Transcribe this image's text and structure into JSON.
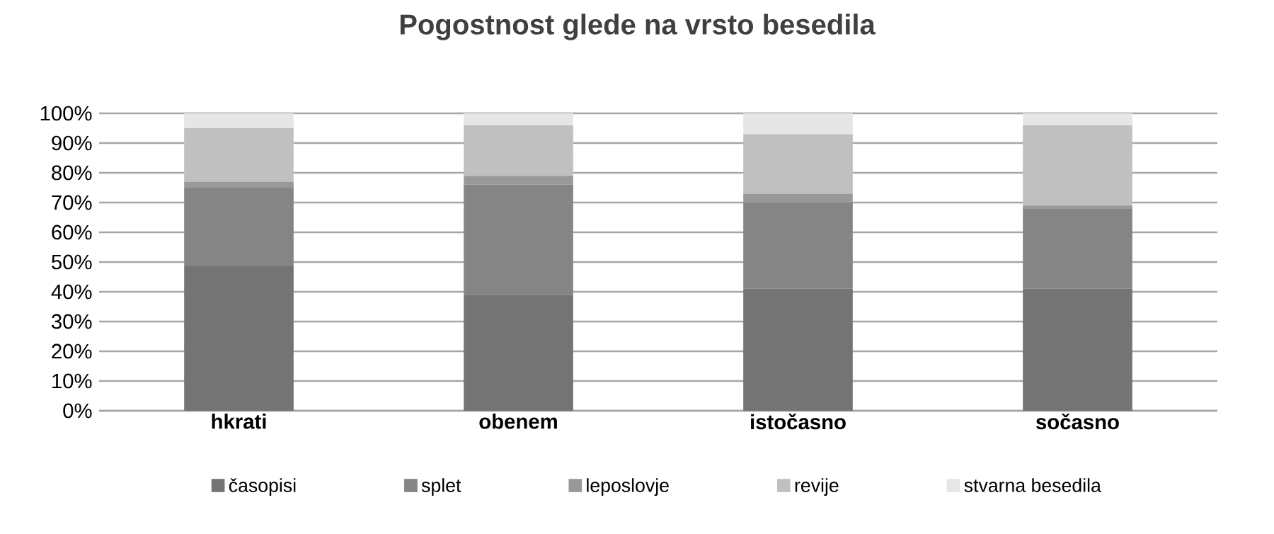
{
  "chart_data": {
    "type": "bar",
    "stacked": true,
    "title": "Pogostnost glede na vrsto besedila",
    "categories": [
      "hkrati",
      "obenem",
      "istočasno",
      "sočasno"
    ],
    "series": [
      {
        "name": "časopisi",
        "color": "#747474",
        "values": [
          49,
          39,
          41,
          41
        ]
      },
      {
        "name": "splet",
        "color": "#858585",
        "values": [
          26,
          37,
          29,
          27
        ]
      },
      {
        "name": "leposlovje",
        "color": "#999999",
        "values": [
          2,
          3,
          3,
          1
        ]
      },
      {
        "name": "revije",
        "color": "#c0c0c0",
        "values": [
          18,
          17,
          20,
          27
        ]
      },
      {
        "name": "stvarna besedila",
        "color": "#e6e6e6",
        "values": [
          5,
          4,
          7,
          4
        ]
      }
    ],
    "ylim": [
      0,
      100
    ],
    "yticks": [
      {
        "value": 0,
        "label": "0%"
      },
      {
        "value": 10,
        "label": "10%"
      },
      {
        "value": 20,
        "label": "20%"
      },
      {
        "value": 30,
        "label": "30%"
      },
      {
        "value": 40,
        "label": "40%"
      },
      {
        "value": 50,
        "label": "50%"
      },
      {
        "value": 60,
        "label": "60%"
      },
      {
        "value": 70,
        "label": "70%"
      },
      {
        "value": 80,
        "label": "80%"
      },
      {
        "value": 90,
        "label": "90%"
      },
      {
        "value": 100,
        "label": "100%"
      }
    ],
    "grid": "y",
    "legend": "bottom"
  }
}
